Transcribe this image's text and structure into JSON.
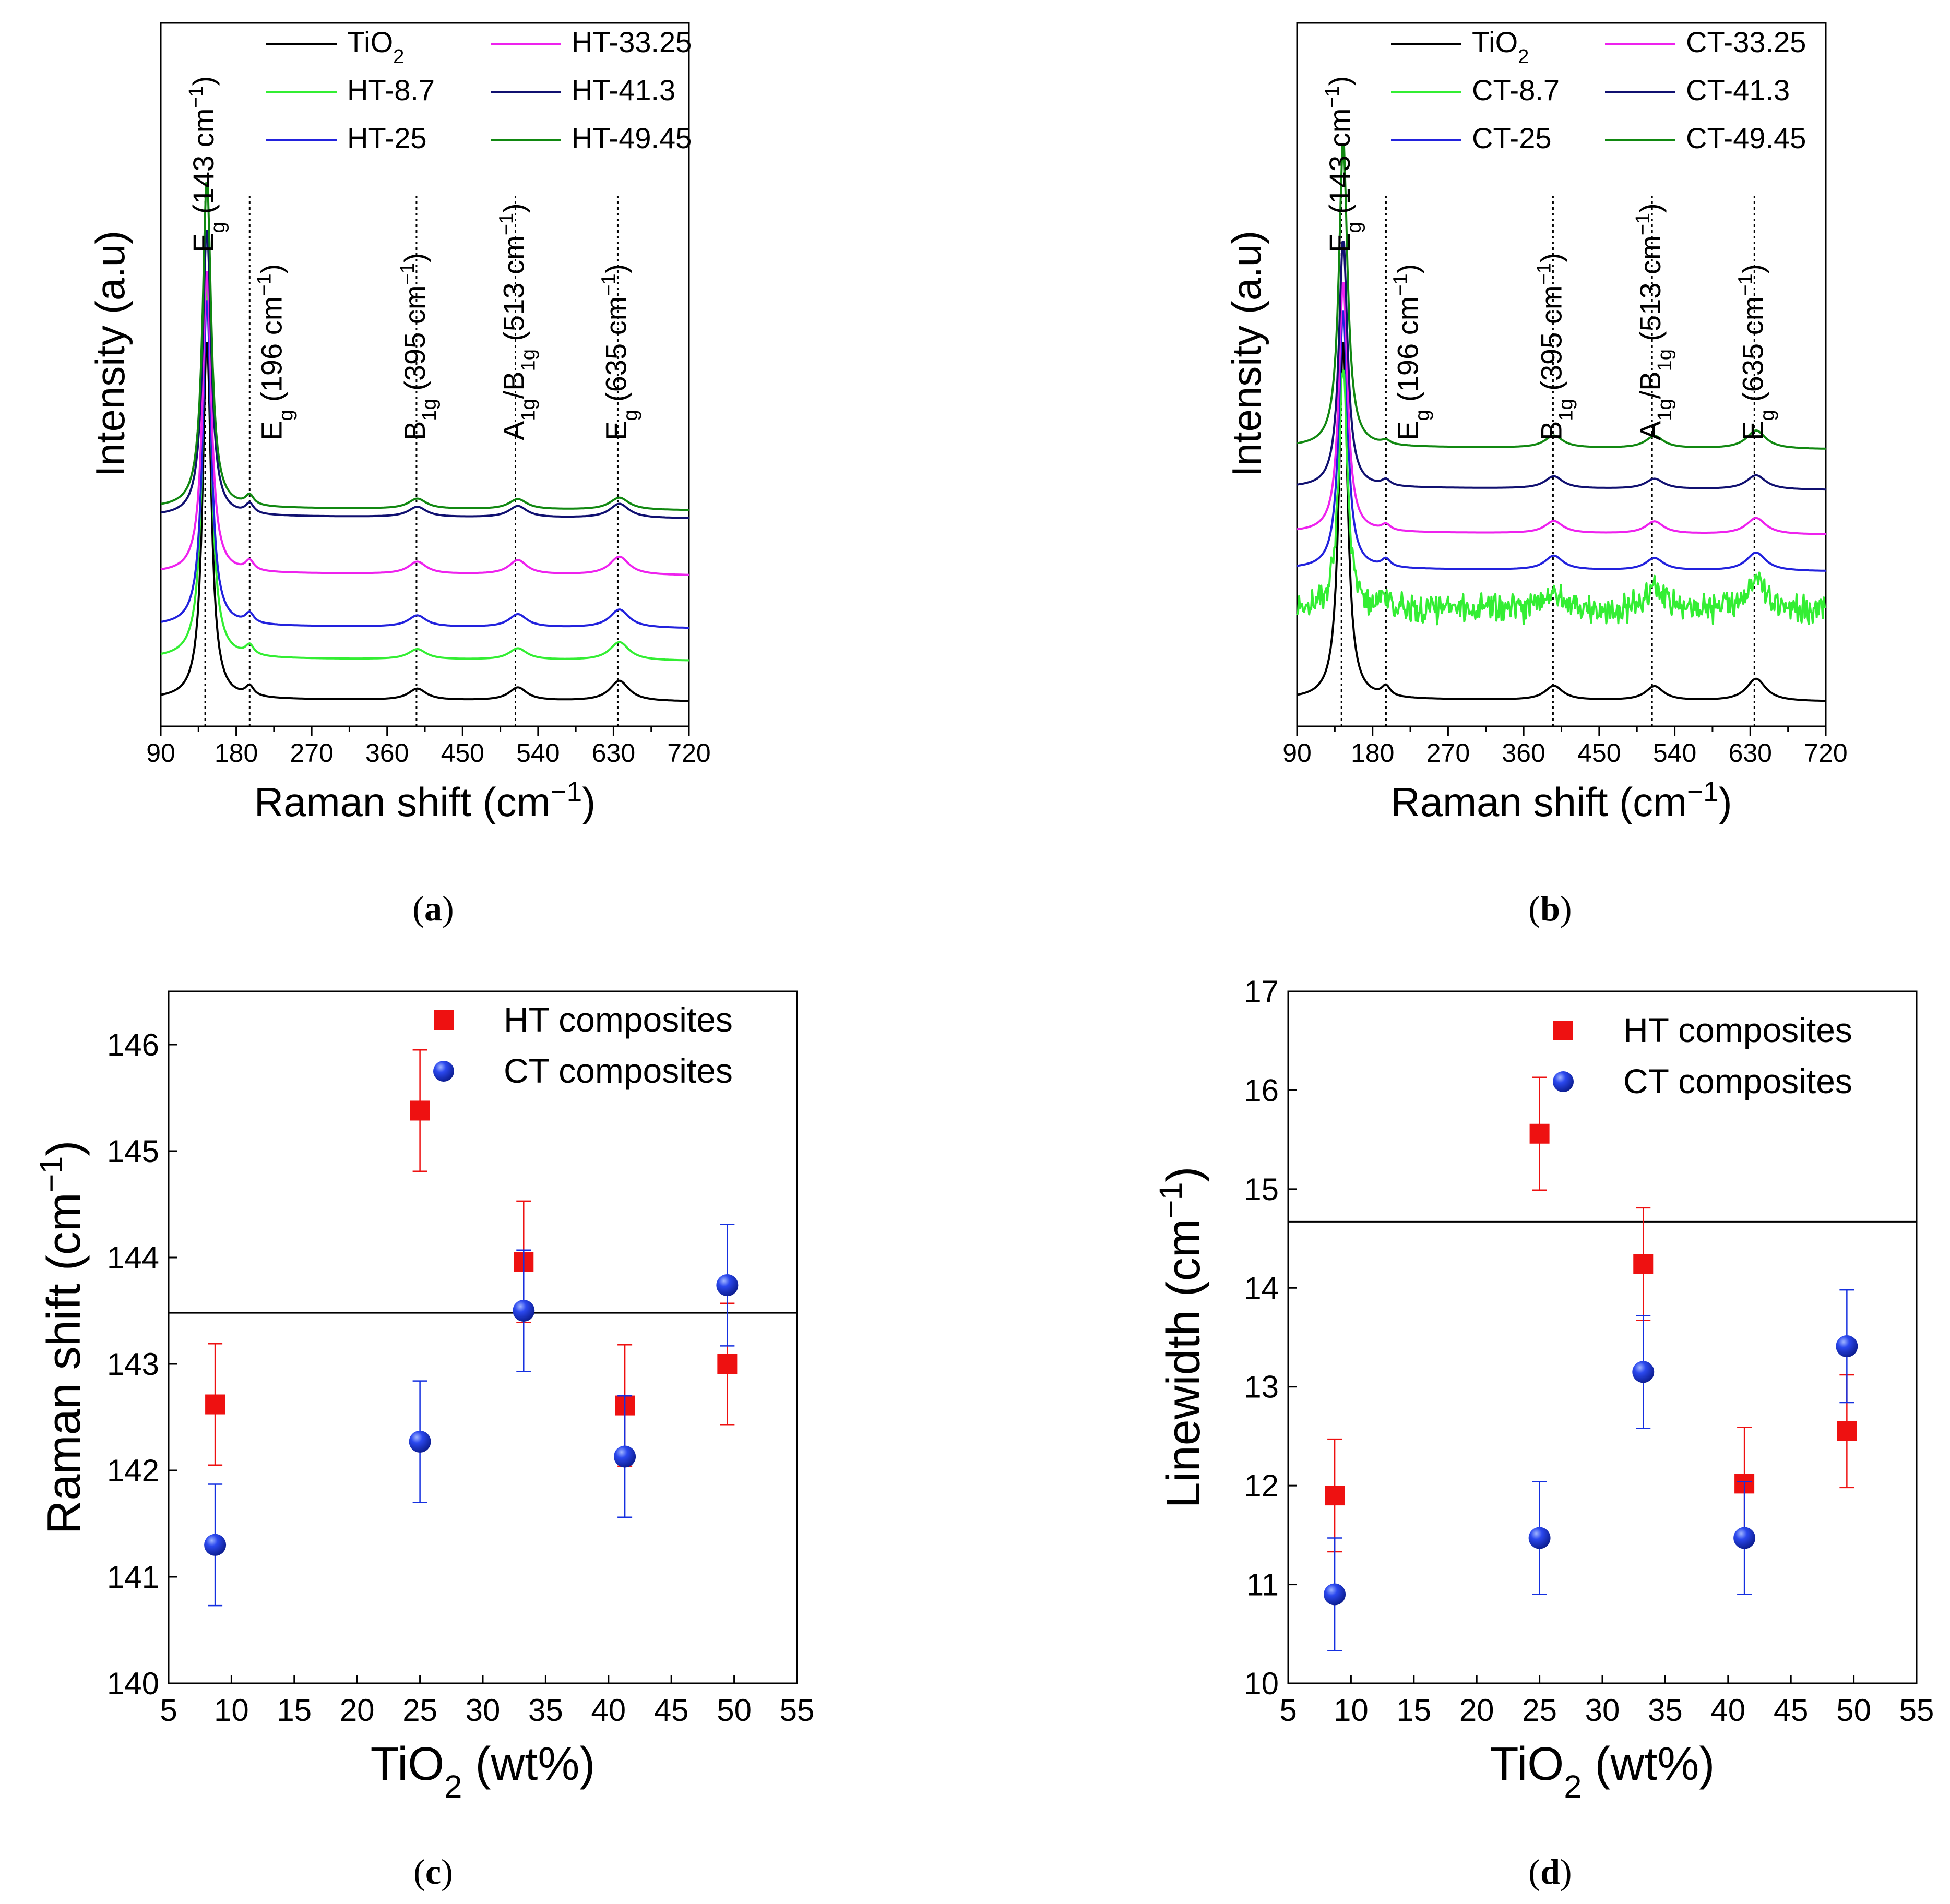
{
  "figure_labels": [
    {
      "open": "(",
      "letter": "a",
      "close": ")"
    },
    {
      "open": "(",
      "letter": "b",
      "close": ")"
    },
    {
      "open": "(",
      "letter": "c",
      "close": ")"
    },
    {
      "open": "(",
      "letter": "d",
      "close": ")"
    }
  ],
  "chart_data": [
    {
      "id": "a",
      "type": "line",
      "title": "",
      "xlabel": "Raman shift (cm⁻¹)",
      "ylabel": "Intensity (a.u)",
      "xlim": [
        90,
        720
      ],
      "xticks": [
        90,
        180,
        270,
        360,
        450,
        540,
        630,
        720
      ],
      "legend": [
        {
          "name": "TiO₂",
          "color": "#000000"
        },
        {
          "name": "HT-8.7",
          "color": "#33ee33"
        },
        {
          "name": "HT-25",
          "color": "#2222dd"
        },
        {
          "name": "HT-33.25",
          "color": "#ee22ee"
        },
        {
          "name": "HT-41.3",
          "color": "#101070"
        },
        {
          "name": "HT-49.45",
          "color": "#118811"
        }
      ],
      "series": [
        {
          "name": "TiO₂",
          "color": "#000000",
          "baseline": 0.0,
          "main_peak": 9.0,
          "minor_peaks": [
            0.25,
            0.28,
            0.32,
            0.5
          ],
          "noise": 0
        },
        {
          "name": "HT-8.7",
          "color": "#33ee33",
          "baseline": 1.0,
          "main_peak": 9.5,
          "minor_peaks": [
            0.25,
            0.25,
            0.28,
            0.45
          ],
          "noise": 0
        },
        {
          "name": "HT-25",
          "color": "#2222dd",
          "baseline": 1.8,
          "main_peak": 8.2,
          "minor_peaks": [
            0.25,
            0.28,
            0.32,
            0.45
          ],
          "noise": 0
        },
        {
          "name": "HT-33.25",
          "color": "#ee22ee",
          "baseline": 3.1,
          "main_peak": 7.6,
          "minor_peaks": [
            0.25,
            0.3,
            0.35,
            0.45
          ],
          "noise": 0
        },
        {
          "name": "HT-41.3",
          "color": "#101070",
          "baseline": 4.5,
          "main_peak": 7.2,
          "minor_peaks": [
            0.25,
            0.25,
            0.28,
            0.35
          ],
          "noise": 0
        },
        {
          "name": "HT-49.45",
          "color": "#118811",
          "baseline": 4.7,
          "main_peak": 8.2,
          "minor_peaks": [
            0.25,
            0.25,
            0.25,
            0.3
          ],
          "noise": 0
        }
      ],
      "reference_lines": [
        143,
        196,
        395,
        513,
        635
      ],
      "peak_labels": [
        {
          "x": 143,
          "sym": "E",
          "sub": "g",
          "pos": " (143 cm",
          "sup": "−1",
          "end": ")"
        },
        {
          "x": 196,
          "sym": "E",
          "sub": "g",
          "pos": " (196 cm",
          "sup": "−1",
          "end": ")"
        },
        {
          "x": 395,
          "sym": "B",
          "sub": "1g",
          "pos": " (395 cm",
          "sup": "−1",
          "end": ")"
        },
        {
          "x": 513,
          "sym": "A",
          "sub": "1g",
          "mid": "/B",
          "sub2": "1g",
          "pos": " (513 cm",
          "sup": "−1",
          "end": ")"
        },
        {
          "x": 635,
          "sym": "E",
          "sub": "g",
          "pos": " (635 cm",
          "sup": "−1",
          "end": ")"
        }
      ]
    },
    {
      "id": "b",
      "type": "line",
      "title": "",
      "xlabel": "Raman shift (cm⁻¹)",
      "ylabel": "Intensity (a.u)",
      "xlim": [
        90,
        720
      ],
      "xticks": [
        90,
        180,
        270,
        360,
        450,
        540,
        630,
        720
      ],
      "legend": [
        {
          "name": "TiO₂",
          "color": "#000000"
        },
        {
          "name": "CT-8.7",
          "color": "#33ee33"
        },
        {
          "name": "CT-25",
          "color": "#2222dd"
        },
        {
          "name": "CT-33.25",
          "color": "#ee22ee"
        },
        {
          "name": "CT-41.3",
          "color": "#101070"
        },
        {
          "name": "CT-49.45",
          "color": "#118811"
        }
      ],
      "series": [
        {
          "name": "TiO₂",
          "color": "#000000",
          "baseline": 0.0,
          "main_peak": 9.0,
          "minor_peaks": [
            0.25,
            0.35,
            0.35,
            0.55
          ],
          "noise": 0
        },
        {
          "name": "CT-8.7",
          "color": "#33ee33",
          "baseline": 2.2,
          "main_peak": 6.0,
          "minor_peaks": [
            0.3,
            0.5,
            0.6,
            0.8
          ],
          "noise": 0.55
        },
        {
          "name": "CT-25",
          "color": "#2222dd",
          "baseline": 3.2,
          "main_peak": 6.5,
          "minor_peaks": [
            0.2,
            0.35,
            0.3,
            0.45
          ],
          "noise": 0
        },
        {
          "name": "CT-33.25",
          "color": "#ee22ee",
          "baseline": 4.1,
          "main_peak": 6.3,
          "minor_peaks": [
            0.15,
            0.3,
            0.3,
            0.4
          ],
          "noise": 0
        },
        {
          "name": "CT-41.3",
          "color": "#101070",
          "baseline": 5.2,
          "main_peak": 6.2,
          "minor_peaks": [
            0.15,
            0.3,
            0.25,
            0.35
          ],
          "noise": 0
        },
        {
          "name": "CT-49.45",
          "color": "#118811",
          "baseline": 6.2,
          "main_peak": 7.6,
          "minor_peaks": [
            0.1,
            0.3,
            0.3,
            0.45
          ],
          "noise": 0
        }
      ],
      "reference_lines": [
        143,
        196,
        395,
        513,
        635
      ],
      "peak_labels": [
        {
          "x": 143,
          "sym": "E",
          "sub": "g",
          "pos": " (143 cm",
          "sup": "−1",
          "end": ")"
        },
        {
          "x": 196,
          "sym": "E",
          "sub": "g",
          "pos": " (196 cm",
          "sup": "−1",
          "end": ")"
        },
        {
          "x": 395,
          "sym": "B",
          "sub": "1g",
          "pos": " (395 cm",
          "sup": "−1",
          "end": ")"
        },
        {
          "x": 513,
          "sym": "A",
          "sub": "1g",
          "mid": "/B",
          "sub2": "1g",
          "pos": " (513 cm",
          "sup": "−1",
          "end": ")"
        },
        {
          "x": 635,
          "sym": "E",
          "sub": "g",
          "pos": " (635 cm",
          "sup": "−1",
          "end": ")"
        }
      ]
    },
    {
      "id": "c",
      "type": "scatter",
      "title": "",
      "xlabel": "TiO₂ (wt%)",
      "ylabel": "Raman shift (cm⁻¹)",
      "xlim": [
        5,
        55
      ],
      "ylim": [
        140,
        146.5
      ],
      "xticks": [
        5,
        10,
        15,
        20,
        25,
        30,
        35,
        40,
        45,
        50,
        55
      ],
      "yticks": [
        140,
        141,
        142,
        143,
        144,
        145,
        146
      ],
      "reference_y": 143.48,
      "series": [
        {
          "name": "HT composites",
          "marker": "square",
          "color": "#ee1111",
          "x": [
            8.7,
            25,
            33.25,
            41.3,
            49.45
          ],
          "y": [
            142.62,
            145.38,
            143.96,
            142.61,
            143.0
          ],
          "err": [
            0.57,
            0.57,
            0.57,
            0.57,
            0.57
          ]
        },
        {
          "name": "CT composites",
          "marker": "circle",
          "color": "#1530e0",
          "x": [
            8.7,
            25,
            33.25,
            41.3,
            49.45
          ],
          "y": [
            141.3,
            142.27,
            143.5,
            142.13,
            143.74
          ],
          "err": [
            0.57,
            0.57,
            0.57,
            0.57,
            0.57
          ]
        }
      ]
    },
    {
      "id": "d",
      "type": "scatter",
      "title": "",
      "xlabel": "TiO₂ (wt%)",
      "ylabel": "Linewidth (cm⁻¹)",
      "xlim": [
        5,
        55
      ],
      "ylim": [
        10,
        17
      ],
      "xticks": [
        5,
        10,
        15,
        20,
        25,
        30,
        35,
        40,
        45,
        50,
        55
      ],
      "yticks": [
        10,
        11,
        12,
        13,
        14,
        15,
        16,
        17
      ],
      "reference_y": 14.67,
      "series": [
        {
          "name": "HT composites",
          "marker": "square",
          "color": "#ee1111",
          "x": [
            8.7,
            25,
            33.25,
            41.3,
            49.45
          ],
          "y": [
            11.9,
            15.56,
            14.24,
            12.02,
            12.55
          ],
          "err": [
            0.57,
            0.57,
            0.57,
            0.57,
            0.57
          ]
        },
        {
          "name": "CT composites",
          "marker": "circle",
          "color": "#1530e0",
          "x": [
            8.7,
            25,
            33.25,
            41.3,
            49.45
          ],
          "y": [
            10.9,
            11.47,
            13.15,
            11.47,
            13.41
          ],
          "err": [
            0.57,
            0.57,
            0.57,
            0.57,
            0.57
          ]
        }
      ]
    }
  ]
}
